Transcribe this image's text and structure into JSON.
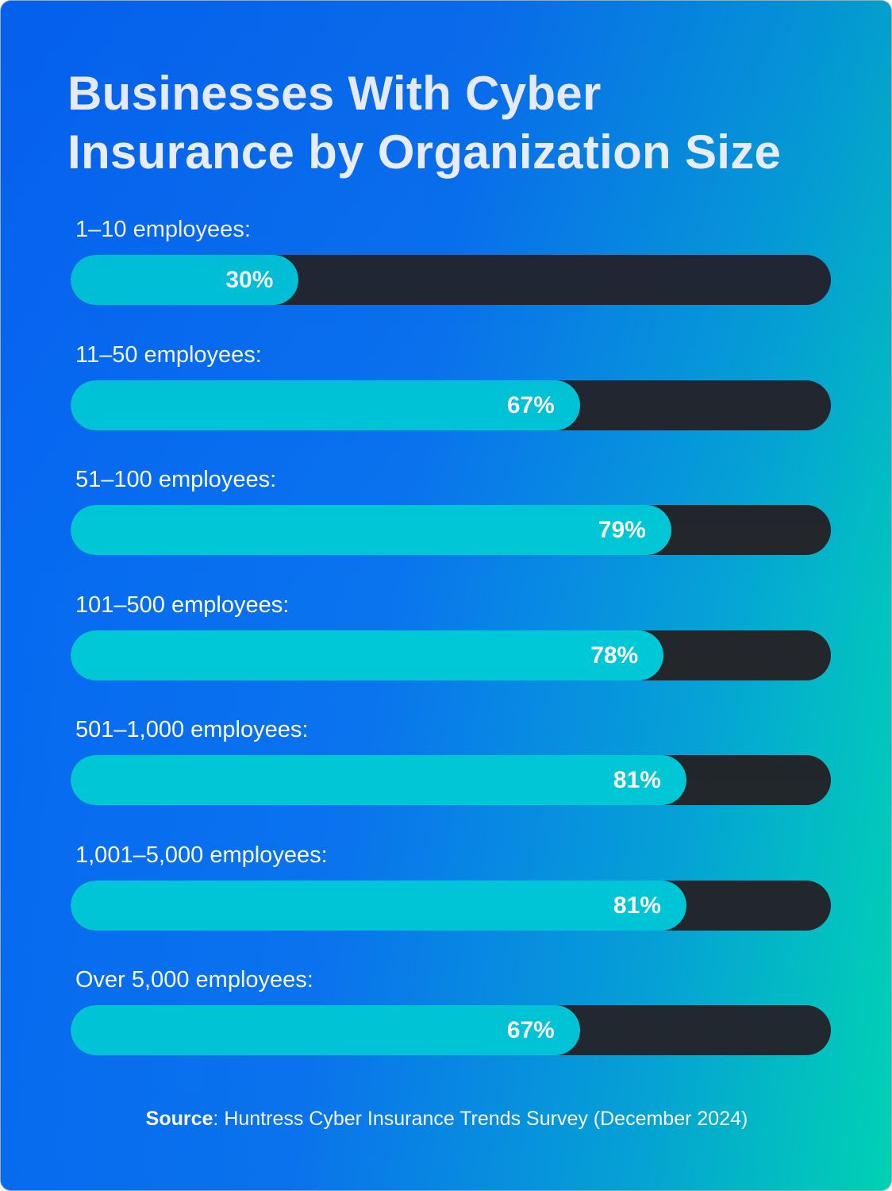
{
  "chart_data": {
    "type": "bar",
    "orientation": "horizontal",
    "title": "Businesses With Cyber Insurance by Organization Size",
    "title_lines": [
      "Businesses With Cyber",
      "Insurance by Organization Size"
    ],
    "categories": [
      "1–10 employees:",
      "11–50 employees:",
      "51–100 employees:",
      "101–500 employees:",
      "501–1,000 employees:",
      "1,001–5,000 employees:",
      "Over 5,000 employees:"
    ],
    "values": [
      30,
      67,
      79,
      78,
      81,
      81,
      67
    ],
    "value_labels": [
      "30%",
      "67%",
      "79%",
      "78%",
      "81%",
      "81%",
      "67%"
    ],
    "xlim": [
      0,
      100
    ],
    "unit": "%",
    "colors": {
      "fill": "#00c8d6",
      "track": "#232629",
      "background_start": "#0567f2",
      "background_end": "#00d8b2"
    }
  },
  "source": {
    "label": "Source",
    "text": ": Huntress Cyber Insurance Trends Survey (December 2024)"
  }
}
